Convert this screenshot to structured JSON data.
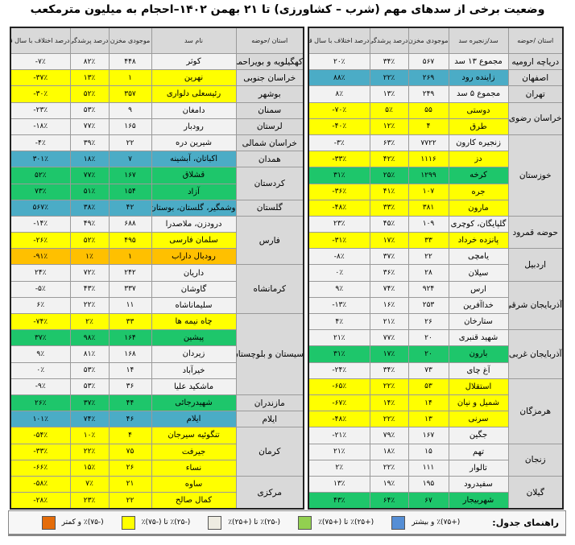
{
  "title": "وضعیت برخی از سدهای مهم (شرب – کشاورزی) تا ۲۱ بهمن ۱۴۰۲–احجام به میلیون مترمکعب",
  "colors": {
    "w": "#f2f2f2",
    "y": "#ffff00",
    "g": "#1ec66b",
    "b": "#4bacc6",
    "o": "#ffc000",
    "header": "#d9d9d9"
  },
  "right_table": {
    "headers": [
      "استان /حوضه",
      "سد/زنجیره سد",
      "موجودی مخزن",
      "درصد پرشدگی",
      "درصد اختلاف با سال قبل"
    ],
    "groups": [
      {
        "province": "دریاچه ارومیه",
        "rows": [
          {
            "name": "مجموع ۱۳ سد",
            "storage": "۵۶۷",
            "fill": "۳۴٪",
            "diff": "۲۰٪",
            "color": "w"
          }
        ]
      },
      {
        "province": "اصفهان",
        "rows": [
          {
            "name": "زاینده رود",
            "storage": "۲۶۹",
            "fill": "۲۲٪",
            "diff": "۸۸٪",
            "color": "b"
          }
        ]
      },
      {
        "province": "تهران",
        "rows": [
          {
            "name": "مجموع ۵ سد",
            "storage": "۲۴۹",
            "fill": "۱۳٪",
            "diff": "۸٪",
            "color": "w"
          }
        ]
      },
      {
        "province": "خراسان رضوی",
        "rows": [
          {
            "name": "دوستی",
            "storage": "۵۵",
            "fill": "۵٪",
            "diff": "-۷۰٪",
            "color": "y"
          },
          {
            "name": "طرق",
            "storage": "۴",
            "fill": "۱۲٪",
            "diff": "-۴۰٪",
            "color": "y"
          }
        ]
      },
      {
        "province": "خوزستان",
        "rows": [
          {
            "name": "زنجیره کارون",
            "storage": "۷۷۲۲",
            "fill": "۶۳٪",
            "diff": "-۳٪",
            "color": "w"
          },
          {
            "name": "دز",
            "storage": "۱۱۱۶",
            "fill": "۴۲٪",
            "diff": "-۳۳٪",
            "color": "y"
          },
          {
            "name": "کرخه",
            "storage": "۱۲۹۹",
            "fill": "۲۵٪",
            "diff": "۳۱٪",
            "color": "g"
          },
          {
            "name": "جره",
            "storage": "۱۰۷",
            "fill": "۴۱٪",
            "diff": "-۳۶٪",
            "color": "y"
          },
          {
            "name": "مارون",
            "storage": "۳۸۱",
            "fill": "۳۳٪",
            "diff": "-۴۸٪",
            "color": "y"
          }
        ]
      },
      {
        "province": "حوضه قمرود",
        "rows": [
          {
            "name": "گلپایگان، کوچری",
            "storage": "۱۰۹",
            "fill": "۴۵٪",
            "diff": "۲۳٪",
            "color": "w"
          },
          {
            "name": "پانزده خرداد",
            "storage": "۳۳",
            "fill": "۱۷٪",
            "diff": "-۳۱٪",
            "color": "y"
          }
        ]
      },
      {
        "province": "اردبیل",
        "rows": [
          {
            "name": "یامچی",
            "storage": "۲۲",
            "fill": "۳۷٪",
            "diff": "-۸٪",
            "color": "w"
          },
          {
            "name": "سیلان",
            "storage": "۲۸",
            "fill": "۳۶٪",
            "diff": "۰٪",
            "color": "w"
          }
        ]
      },
      {
        "province": "آذربایجان شرقی",
        "rows": [
          {
            "name": "ارس",
            "storage": "۹۲۴",
            "fill": "۷۴٪",
            "diff": "۹٪",
            "color": "w"
          },
          {
            "name": "خداآفرین",
            "storage": "۲۵۳",
            "fill": "۱۶٪",
            "diff": "-۱۳٪",
            "color": "w"
          },
          {
            "name": "ستارخان",
            "storage": "۲۶",
            "fill": "۲۱٪",
            "diff": "۴٪",
            "color": "w"
          }
        ]
      },
      {
        "province": "آذربایجان غربی",
        "rows": [
          {
            "name": "شهید قنبری",
            "storage": "۲۰",
            "fill": "۷۷٪",
            "diff": "۲۱٪",
            "color": "w"
          },
          {
            "name": "بارون",
            "storage": "۲۰",
            "fill": "۱۷٪",
            "diff": "۳۱٪",
            "color": "g"
          },
          {
            "name": "آغ چای",
            "storage": "۷۳",
            "fill": "۳۴٪",
            "diff": "-۲۴٪",
            "color": "w"
          }
        ]
      },
      {
        "province": "هرمزگان",
        "rows": [
          {
            "name": "استقلال",
            "storage": "۵۳",
            "fill": "۲۲٪",
            "diff": "-۶۵٪",
            "color": "y"
          },
          {
            "name": "شمیل و نیان",
            "storage": "۱۴",
            "fill": "۱۴٪",
            "diff": "-۶۷٪",
            "color": "y"
          },
          {
            "name": "سرنی",
            "storage": "۱۳",
            "fill": "۲۲٪",
            "diff": "-۴۸٪",
            "color": "y"
          },
          {
            "name": "جگین",
            "storage": "۱۶۷",
            "fill": "۷۹٪",
            "diff": "-۲۱٪",
            "color": "w"
          }
        ]
      },
      {
        "province": "زنجان",
        "rows": [
          {
            "name": "تهم",
            "storage": "۱۵",
            "fill": "۱۸٪",
            "diff": "۲۱٪",
            "color": "w"
          },
          {
            "name": "تالوار",
            "storage": "۱۱۱",
            "fill": "۲۲٪",
            "diff": "۲٪",
            "color": "w"
          }
        ]
      },
      {
        "province": "گیلان",
        "rows": [
          {
            "name": "سفیدرود",
            "storage": "۱۹۵",
            "fill": "۱۹٪",
            "diff": "۱۳٪",
            "color": "w"
          },
          {
            "name": "شهربیجار",
            "storage": "۶۷",
            "fill": "۶۴٪",
            "diff": "۴۳٪",
            "color": "g"
          }
        ]
      }
    ]
  },
  "left_table": {
    "headers": [
      "استان /حوضه",
      "نام سد",
      "موجودی مخزن",
      "درصد پرشدگی",
      "درصد اختلاف با سال قبل"
    ],
    "groups": [
      {
        "province": "کهگیلویه و بویراحمد",
        "rows": [
          {
            "name": "کوثر",
            "storage": "۴۴۸",
            "fill": "۸۲٪",
            "diff": "-۷٪",
            "color": "w"
          }
        ]
      },
      {
        "province": "خراسان جنوبی",
        "rows": [
          {
            "name": "نهرین",
            "storage": "۱",
            "fill": "۱۳٪",
            "diff": "-۳۷٪",
            "color": "y"
          }
        ]
      },
      {
        "province": "بوشهر",
        "rows": [
          {
            "name": "رئیسعلی دلواری",
            "storage": "۳۵۷",
            "fill": "۵۲٪",
            "diff": "-۳۰٪",
            "color": "y"
          }
        ]
      },
      {
        "province": "سمنان",
        "rows": [
          {
            "name": "دامغان",
            "storage": "۹",
            "fill": "۵۳٪",
            "diff": "-۲۳٪",
            "color": "w"
          }
        ]
      },
      {
        "province": "لرستان",
        "rows": [
          {
            "name": "رودبار",
            "storage": "۱۶۵",
            "fill": "۷۷٪",
            "diff": "-۱۸٪",
            "color": "w"
          }
        ]
      },
      {
        "province": "خراسان شمالی",
        "rows": [
          {
            "name": "شیرین دره",
            "storage": "۲۲",
            "fill": "۳۹٪",
            "diff": "-۴٪",
            "color": "w"
          }
        ]
      },
      {
        "province": "همدان",
        "rows": [
          {
            "name": "اکباتان، آبشینه",
            "storage": "۷",
            "fill": "۱۸٪",
            "diff": "۳۰۱٪",
            "color": "b"
          }
        ]
      },
      {
        "province": "کردستان",
        "rows": [
          {
            "name": "قشلاق",
            "storage": "۱۶۷",
            "fill": "۷۷٪",
            "diff": "۵۲٪",
            "color": "g"
          },
          {
            "name": "آزاد",
            "storage": "۱۵۴",
            "fill": "۵۱٪",
            "diff": "۷۳٪",
            "color": "g"
          }
        ]
      },
      {
        "province": "گلستان",
        "rows": [
          {
            "name": "وشمگیر، گلستان، بوستان",
            "storage": "۴۲",
            "fill": "۳۸٪",
            "diff": "۵۶۷٪",
            "color": "b"
          }
        ]
      },
      {
        "province": "فارس",
        "rows": [
          {
            "name": "درودزن، ملاصدرا",
            "storage": "۶۸۸",
            "fill": "۴۹٪",
            "diff": "-۱۴٪",
            "color": "w"
          },
          {
            "name": "سلمان فارسی",
            "storage": "۴۹۵",
            "fill": "۵۲٪",
            "diff": "-۲۶٪",
            "color": "y"
          },
          {
            "name": "رودبال داراب",
            "storage": "۱",
            "fill": "۱٪",
            "diff": "-۹۱٪",
            "color": "o"
          }
        ]
      },
      {
        "province": "کرمانشاه",
        "rows": [
          {
            "name": "داریان",
            "storage": "۲۴۲",
            "fill": "۷۲٪",
            "diff": "۲۴٪",
            "color": "w"
          },
          {
            "name": "گاوشان",
            "storage": "۳۳۷",
            "fill": "۴۳٪",
            "diff": "-۵٪",
            "color": "w"
          },
          {
            "name": "سلیماناشاه",
            "storage": "۱۱",
            "fill": "۲۲٪",
            "diff": "۶٪",
            "color": "w"
          }
        ]
      },
      {
        "province": "سیستان و بلوچستان",
        "rows": [
          {
            "name": "چاه نیمه ها",
            "storage": "۳۳",
            "fill": "۲٪",
            "diff": "-۷۴٪",
            "color": "y"
          },
          {
            "name": "پیشین",
            "storage": "۱۶۴",
            "fill": "۹۸٪",
            "diff": "۳۷٪",
            "color": "g"
          },
          {
            "name": "زیردان",
            "storage": "۱۶۸",
            "fill": "۸۱٪",
            "diff": "۹٪",
            "color": "w"
          },
          {
            "name": "خیرآباد",
            "storage": "۱۴",
            "fill": "۵۳٪",
            "diff": "۰٪",
            "color": "w"
          },
          {
            "name": "ماشکید علیا",
            "storage": "۳۶",
            "fill": "۵۳٪",
            "diff": "-۹٪",
            "color": "w"
          }
        ]
      },
      {
        "province": "مازندران",
        "rows": [
          {
            "name": "شهیدرجائی",
            "storage": "۴۴",
            "fill": "۳۷٪",
            "diff": "۲۶٪",
            "color": "g"
          }
        ]
      },
      {
        "province": "ایلام",
        "rows": [
          {
            "name": "ایلام",
            "storage": "۴۶",
            "fill": "۷۴٪",
            "diff": "۱۰۱٪",
            "color": "b"
          }
        ]
      },
      {
        "province": "کرمان",
        "rows": [
          {
            "name": "تنگوئیه سیرجان",
            "storage": "۴",
            "fill": "۱۰٪",
            "diff": "-۵۴٪",
            "color": "y"
          },
          {
            "name": "جیرفت",
            "storage": "۷۵",
            "fill": "۲۲٪",
            "diff": "-۳۳٪",
            "color": "y"
          },
          {
            "name": "نساء",
            "storage": "۲۶",
            "fill": "۱۵٪",
            "diff": "-۶۶٪",
            "color": "y"
          }
        ]
      },
      {
        "province": "مرکزی",
        "rows": [
          {
            "name": "ساوه",
            "storage": "۲۱",
            "fill": "۷٪",
            "diff": "-۵۸٪",
            "color": "y"
          },
          {
            "name": "کمال صالح",
            "storage": "۲۲",
            "fill": "۲۳٪",
            "diff": "-۲۸٪",
            "color": "y"
          }
        ]
      }
    ]
  },
  "legend": {
    "label": "راهنمای جدول:",
    "items": [
      {
        "text": "(+۷۵)٪ و بیشتر",
        "color": "#558ed5"
      },
      {
        "text": "(+۲۵)٪ تا (+۷۵)٪",
        "color": "#92d050"
      },
      {
        "text": "(-۲۵)٪ تا (+۲۵)٪",
        "color": "#eeece1"
      },
      {
        "text": "(-۲۵)٪ تا (-۷۵)٪",
        "color": "#ffff00"
      },
      {
        "text": "(-۷۵)٪ و کمتر",
        "color": "#e46c0a"
      }
    ]
  }
}
